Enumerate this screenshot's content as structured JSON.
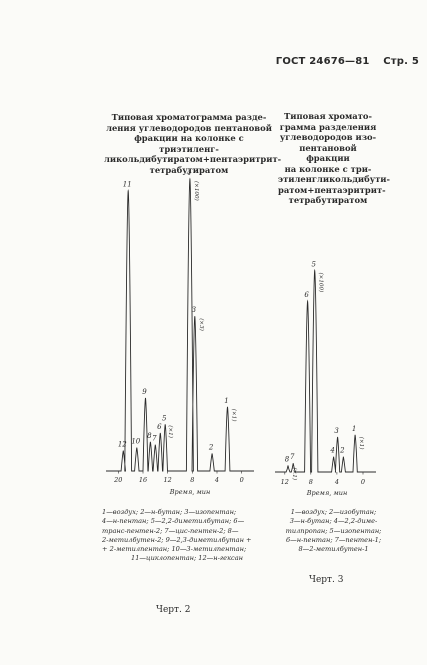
{
  "header": {
    "standard": "ГОСТ 24676—81",
    "page": "Стр. 5"
  },
  "figures": [
    {
      "caption_lines": [
        "Типовая хроматограмма разде-",
        "ления углеводородов пентановой",
        "фракции на колонке с триэтиленг-",
        "ликольдибутиратом+пентаэритрит-",
        "тетрабутиратом"
      ],
      "axis_label": "Время, мин",
      "legend_lines": [
        "1—воздух; 2—н-бутан; 3—изопентан;",
        "4—н-пентан; 5—2,2-диметилбутан; 6—",
        "транс-пентен-2; 7—цис-пентен-2; 8—",
        "2-метилбутен-2; 9—2,3-диметилбутан +",
        "+ 2-метилпентан; 10—3-метилпентан;",
        "11—циклопентан; 12—н-гексан"
      ],
      "label": "Черт. 2"
    },
    {
      "caption_lines": [
        "Типовая хромато-",
        "грамма разделения",
        "углеводородов изо-",
        "пентановой фракции",
        "на колонке с три-",
        "этиленгликольдибути-",
        "ратом+пентаэритрит-",
        "тетрабутиратом"
      ],
      "axis_label": "Время, мин",
      "legend_lines": [
        "1—воздух; 2—изобутан;",
        "3—н-бутан; 4—2,2-диме-",
        "тилпропан; 5—изопентан;",
        "6—н-пентан; 7—пентен-1;",
        "8—2-метилбутен-1"
      ],
      "label": "Черт. 3"
    }
  ],
  "chart_data": [
    {
      "type": "line",
      "xlabel": "Время, мин",
      "x_ticks": [
        20,
        16,
        12,
        8,
        4,
        0
      ],
      "xlim": [
        22,
        -2
      ],
      "peaks": [
        {
          "label": "12",
          "time": 19.2,
          "height": 0.07
        },
        {
          "label": "11",
          "time": 18.4,
          "height": 0.96
        },
        {
          "label": "10",
          "time": 17.0,
          "height": 0.08
        },
        {
          "label": "9",
          "time": 15.6,
          "height": 0.25
        },
        {
          "label": "8",
          "time": 14.8,
          "height": 0.1
        },
        {
          "label": "7",
          "time": 14.0,
          "height": 0.09
        },
        {
          "label": "6",
          "time": 13.2,
          "height": 0.13
        },
        {
          "label": "5",
          "time": 12.4,
          "height": 0.16
        },
        {
          "label": "4",
          "time": 8.4,
          "height": 1.0,
          "annotation": "(×100)"
        },
        {
          "label": "3",
          "time": 7.6,
          "height": 0.53,
          "annotation": "(×3)"
        },
        {
          "label": "2",
          "time": 4.8,
          "height": 0.06
        },
        {
          "label": "1",
          "time": 2.3,
          "height": 0.22,
          "annotation": "(×1)"
        }
      ],
      "extra_annotation": {
        "text": "(×1)",
        "near_peak": "5"
      }
    },
    {
      "type": "line",
      "xlabel": "Время, мин",
      "x_ticks": [
        12,
        8,
        4,
        0
      ],
      "xlim": [
        13.5,
        -2
      ],
      "peaks": [
        {
          "label": "8",
          "time": 11.5,
          "height": 0.03,
          "annotation": "(×1)"
        },
        {
          "label": "7",
          "time": 10.7,
          "height": 0.04
        },
        {
          "label": "6",
          "time": 8.5,
          "height": 0.78
        },
        {
          "label": "5",
          "time": 7.4,
          "height": 0.92,
          "annotation": "(×100)"
        },
        {
          "label": "4",
          "time": 4.5,
          "height": 0.07
        },
        {
          "label": "3",
          "time": 3.9,
          "height": 0.16
        },
        {
          "label": "2",
          "time": 3.0,
          "height": 0.07
        },
        {
          "label": "1",
          "time": 1.2,
          "height": 0.17,
          "annotation": "(×1)"
        }
      ]
    }
  ]
}
